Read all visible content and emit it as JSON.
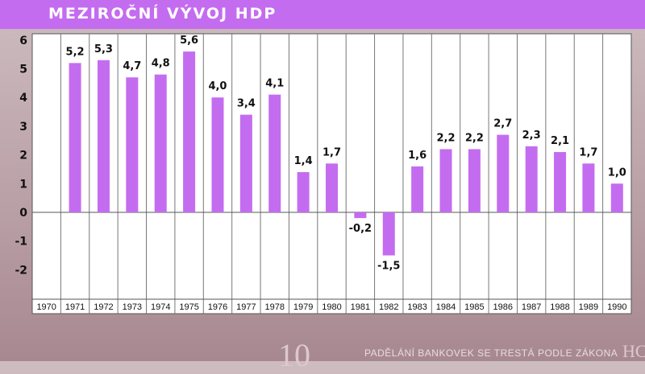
{
  "title": "MEZIROČNÍ VÝVOJ HDP",
  "banknote": {
    "warning": "PADĚLÁNÍ BANKOVEK SE TRESTÁ PODLE ZÁKONA",
    "denomination": "10",
    "edge_letters": "HC"
  },
  "colors": {
    "bar": "#c46cf0",
    "title_bg": "#c46cf0",
    "plot_bg": "#ffffff",
    "grid": "#555555"
  },
  "chart_data": {
    "type": "bar",
    "title": "MEZIROČNÍ VÝVOJ HDP",
    "categories": [
      "1970",
      "1971",
      "1972",
      "1973",
      "1974",
      "1975",
      "1976",
      "1977",
      "1978",
      "1979",
      "1980",
      "1981",
      "1982",
      "1983",
      "1984",
      "1985",
      "1986",
      "1987",
      "1988",
      "1989",
      "1990"
    ],
    "values": [
      null,
      5.2,
      5.3,
      4.7,
      4.8,
      5.6,
      4.0,
      3.4,
      4.1,
      1.4,
      1.7,
      -0.2,
      -1.5,
      1.6,
      2.2,
      2.2,
      2.7,
      2.3,
      2.1,
      1.7,
      1.0
    ],
    "labels": [
      "",
      "5,2",
      "5,3",
      "4,7",
      "4,8",
      "5,6",
      "4,0",
      "3,4",
      "4,1",
      "1,4",
      "1,7",
      "-0,2",
      "-1,5",
      "1,6",
      "2,2",
      "2,2",
      "2,7",
      "2,3",
      "2,1",
      "1,7",
      "1,0"
    ],
    "yticks": [
      6,
      5,
      4,
      3,
      2,
      1,
      0,
      -1,
      -2
    ],
    "ytick_labels": [
      "6",
      "5",
      "4",
      "3",
      "2",
      "1",
      "0",
      "-1",
      "-2"
    ],
    "ylim": [
      -3,
      6.4
    ],
    "grid": "vertical column separators",
    "xlabel": "",
    "ylabel": ""
  }
}
